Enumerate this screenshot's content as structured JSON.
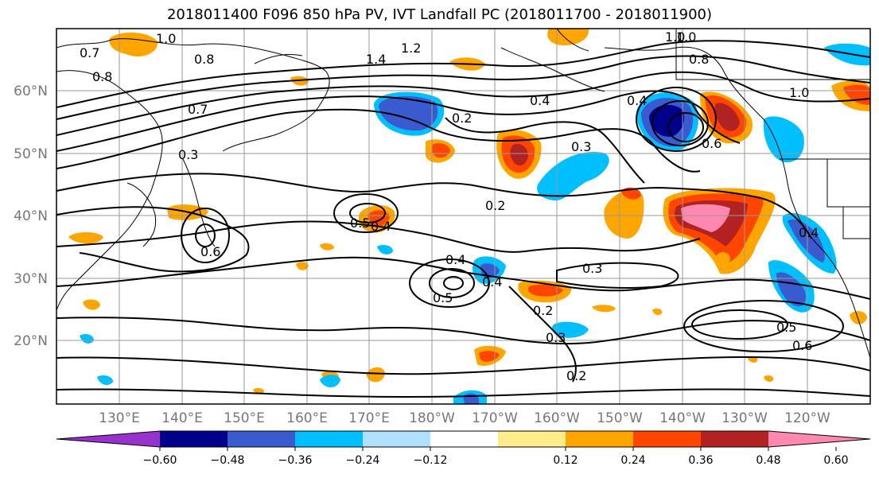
{
  "title": "2018011400 F096 850 hPa PV, IVT Landfall PC (2018011700 - 2018011900)",
  "map": {
    "lat_labels": [
      "60°N",
      "50°N",
      "40°N",
      "30°N",
      "20°N"
    ],
    "lon_labels": [
      "130°E",
      "140°E",
      "150°E",
      "160°E",
      "170°E",
      "180°W",
      "170°W",
      "160°W",
      "150°W",
      "140°W",
      "130°W",
      "120°W"
    ],
    "contour_labels": [
      "1.0",
      "0.8",
      "0.7",
      "0.8",
      "0.7",
      "1.4",
      "1.2",
      "1.0",
      "0.4",
      "0.2",
      "0.3",
      "0.2",
      "0.5",
      "0.4",
      "0.6",
      "0.4",
      "0.5",
      "0.4",
      "0.3",
      "0.2",
      "0.3",
      "0.2",
      "1.0",
      "0.8",
      "0.6",
      "0.4",
      "0.3",
      "1.0",
      "0.5",
      "0.6",
      "0.4"
    ]
  },
  "colorbar": {
    "colors": [
      "#9932CC",
      "#00008B",
      "#3A5BCF",
      "#00BFFF",
      "#B0E2FF",
      "#FFFFFF",
      "#FFEC8B",
      "#FFA500",
      "#FF4500",
      "#B22222",
      "#FF88B0"
    ],
    "tick_labels": [
      "−0.60",
      "−0.48",
      "−0.36",
      "−0.24",
      "−0.12",
      "0.12",
      "0.24",
      "0.36",
      "0.48",
      "0.60"
    ]
  }
}
